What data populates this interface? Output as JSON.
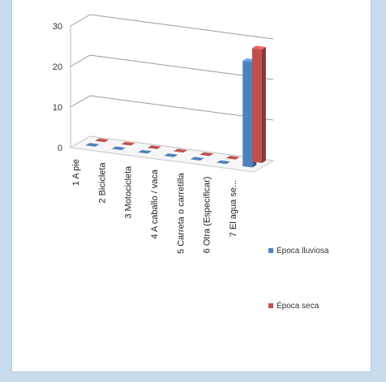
{
  "chart_data": {
    "type": "bar",
    "title": "",
    "xlabel": "",
    "ylabel": "",
    "categories": [
      "1  A pie",
      "2  Bicicleta",
      "3  Motocicleta",
      "4  A caballo / vaca",
      "5  Carreta o carretilla",
      "6  Otra (Especificar)",
      "7  El agua se..."
    ],
    "series": [
      {
        "name": "Época lluviosa",
        "values": [
          0,
          0,
          0,
          0,
          0,
          0,
          26
        ],
        "color": "#4f81bd"
      },
      {
        "name": "Época seca",
        "values": [
          0,
          0,
          0,
          0,
          0,
          0,
          28
        ],
        "color": "#c0504d"
      }
    ],
    "yticks": [
      0,
      10,
      20,
      30
    ],
    "ylim": [
      0,
      30
    ],
    "grid": true,
    "legend_position": "right",
    "three_d": true
  }
}
